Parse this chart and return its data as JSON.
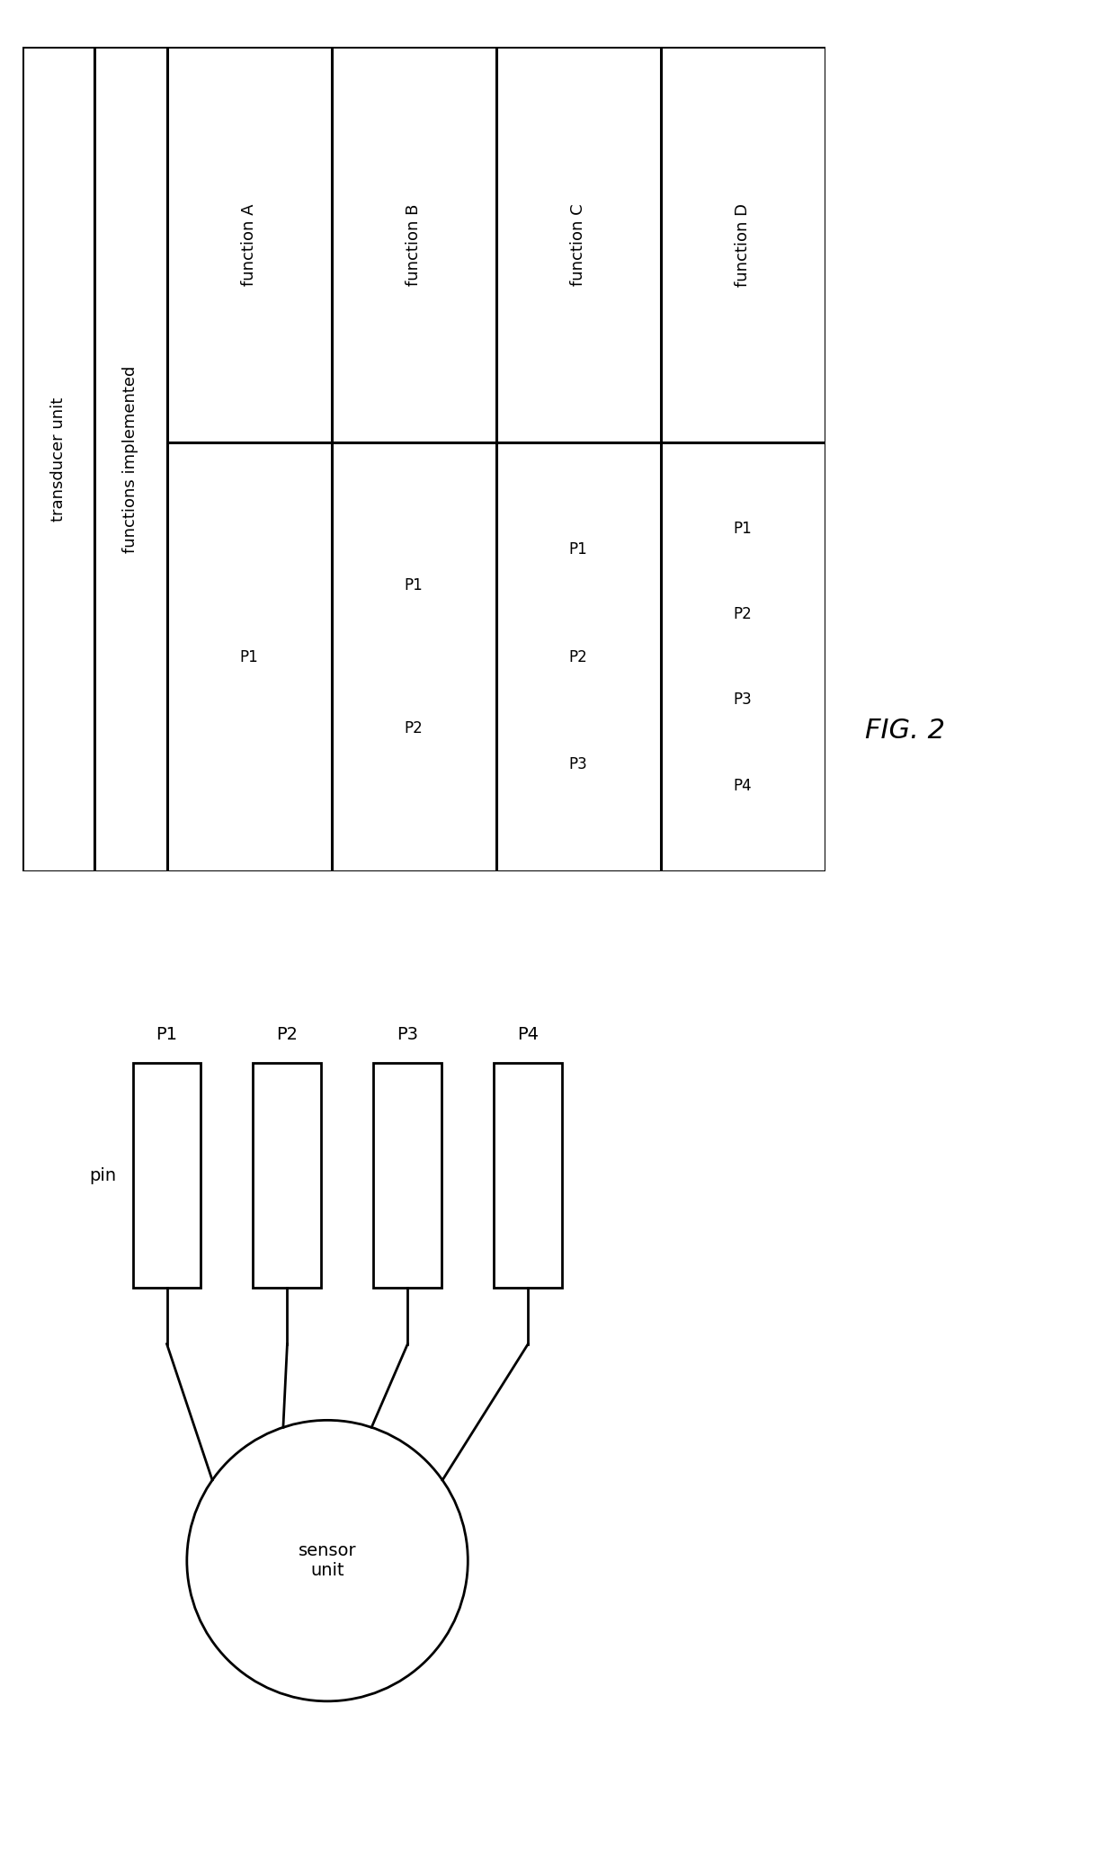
{
  "bg_color": "#ffffff",
  "line_color": "#000000",
  "font_family": "DejaVu Sans",
  "fig_label": "FIG. 2",
  "table": {
    "header_col1": "transducer unit",
    "header_col2": "functions implemented",
    "functions": [
      "function A",
      "function B",
      "function C",
      "function D"
    ],
    "pins": [
      [
        "P1"
      ],
      [
        "P1",
        "P2"
      ],
      [
        "P1",
        "P2",
        "P3"
      ],
      [
        "P1",
        "P2",
        "P3",
        "P4"
      ]
    ]
  },
  "diagram": {
    "pin_labels": [
      "P1",
      "P2",
      "P3",
      "P4"
    ],
    "pin_label": "pin",
    "sensor_label": "sensor\nunit"
  }
}
